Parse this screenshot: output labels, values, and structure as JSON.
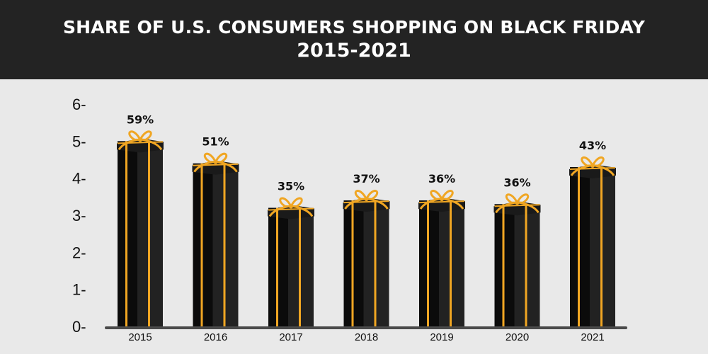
{
  "header": {
    "title": "SHARE OF U.S. CONSUMERS SHOPPING ON BLACK FRIDAY",
    "subtitle": "2015-2021"
  },
  "colors": {
    "header_bg": "#232323",
    "page_bg": "#e9e9e9",
    "box_dark": "#0b0b0b",
    "box_side": "#222222",
    "ribbon": "#f0a623",
    "axis": "#4a4a4a"
  },
  "chart_data": {
    "type": "bar",
    "title": "SHARE OF U.S. CONSUMERS SHOPPING ON BLACK FRIDAY 2015-2021",
    "categories": [
      "2015",
      "2016",
      "2017",
      "2018",
      "2019",
      "2020",
      "2021"
    ],
    "values": [
      5.0,
      4.4,
      3.2,
      3.4,
      3.4,
      3.3,
      4.3
    ],
    "data_labels": [
      "59%",
      "51%",
      "35%",
      "37%",
      "36%",
      "36%",
      "43%"
    ],
    "y_ticks": [
      "0-",
      "1-",
      "2-",
      "3-",
      "4-",
      "5-",
      "6-"
    ],
    "ylim": [
      0,
      6
    ],
    "grid": false,
    "legend": "none",
    "bar_style": "gift-box"
  }
}
